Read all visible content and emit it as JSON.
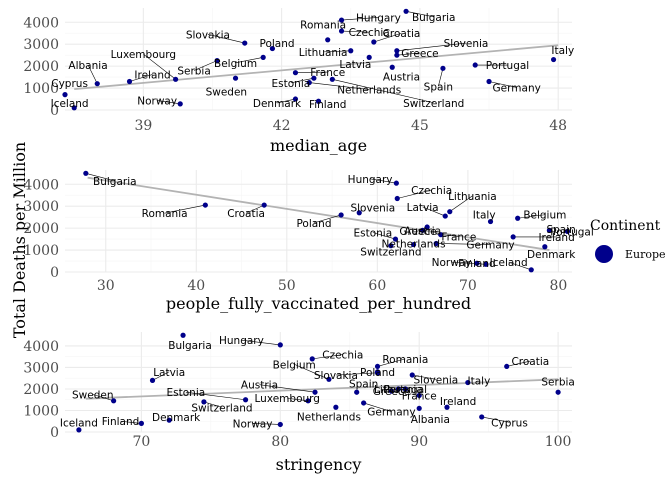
{
  "ylabel": "Total Deaths per Million",
  "legend": {
    "title": "Continent",
    "items": [
      {
        "name": "Europe",
        "color": "#00008B"
      }
    ]
  },
  "colors": {
    "point": "#00008B",
    "trend": "#b3b3b3",
    "grid_major": "#ebebeb",
    "grid_minor": "#f5f5f5"
  },
  "chart_data": [
    {
      "type": "scatter",
      "xlabel": "median_age",
      "xlim": [
        37.3,
        48.3
      ],
      "ylim": [
        0,
        4650
      ],
      "xticks": [
        39,
        42,
        45,
        48
      ],
      "yticks": [
        0,
        1000,
        2000,
        3000,
        4000
      ],
      "trend": [
        [
          37.5,
          950
        ],
        [
          48,
          2950
        ]
      ],
      "points": [
        {
          "label": "Bulgaria",
          "x": 44.7,
          "y": 4500,
          "lx": 45.3,
          "ly": 4250
        },
        {
          "label": "Hungary",
          "x": 43.3,
          "y": 4100,
          "lx": 44.1,
          "ly": 4220
        },
        {
          "label": "Romania",
          "x": 43.0,
          "y": 3200,
          "lx": 42.9,
          "ly": 3900
        },
        {
          "label": "Czechia",
          "x": 43.3,
          "y": 3600,
          "lx": 43.9,
          "ly": 3550
        },
        {
          "label": "Croatia",
          "x": 44.0,
          "y": 3100,
          "lx": 44.6,
          "ly": 3500
        },
        {
          "label": "Slovakia",
          "x": 41.2,
          "y": 3050,
          "lx": 40.4,
          "ly": 3450
        },
        {
          "label": "Poland",
          "x": 41.8,
          "y": 2800,
          "lx": 41.9,
          "ly": 3050
        },
        {
          "label": "Slovenia",
          "x": 44.5,
          "y": 2700,
          "lx": 46.0,
          "ly": 3050
        },
        {
          "label": "Lithuania",
          "x": 43.5,
          "y": 2700,
          "lx": 42.9,
          "ly": 2650
        },
        {
          "label": "Greece",
          "x": 44.5,
          "y": 2500,
          "lx": 45.0,
          "ly": 2600
        },
        {
          "label": "Italy",
          "x": 47.9,
          "y": 2300,
          "lx": 48.1,
          "ly": 2730
        },
        {
          "label": "Belgium",
          "x": 41.6,
          "y": 2400,
          "lx": 41.0,
          "ly": 2150
        },
        {
          "label": "Latvia",
          "x": 43.9,
          "y": 2400,
          "lx": 43.6,
          "ly": 2100
        },
        {
          "label": "Portugal",
          "x": 46.2,
          "y": 2050,
          "lx": 46.9,
          "ly": 2050
        },
        {
          "label": "Serbia",
          "x": 40.6,
          "y": 2250,
          "lx": 40.1,
          "ly": 1800
        },
        {
          "label": "Spain",
          "x": 45.5,
          "y": 1900,
          "lx": 45.4,
          "ly": 1080
        },
        {
          "label": "Austria",
          "x": 44.4,
          "y": 1950,
          "lx": 44.6,
          "ly": 1520
        },
        {
          "label": "France",
          "x": 42.3,
          "y": 1700,
          "lx": 43.0,
          "ly": 1730
        },
        {
          "label": "Germany",
          "x": 46.5,
          "y": 1300,
          "lx": 47.1,
          "ly": 1030
        },
        {
          "label": "Estonia",
          "x": 42.7,
          "y": 1450,
          "lx": 42.2,
          "ly": 1240
        },
        {
          "label": "Netherlands",
          "x": 42.6,
          "y": 1250,
          "lx": 43.9,
          "ly": 930
        },
        {
          "label": "Switzerland",
          "x": 43.1,
          "y": 1400,
          "lx": 45.3,
          "ly": 330
        },
        {
          "label": "Luxembourg",
          "x": 39.7,
          "y": 1400,
          "lx": 39.0,
          "ly": 2550
        },
        {
          "label": "Albania",
          "x": 38.0,
          "y": 1200,
          "lx": 37.8,
          "ly": 2050
        },
        {
          "label": "Ireland",
          "x": 38.7,
          "y": 1300,
          "lx": 39.2,
          "ly": 1620
        },
        {
          "label": "Sweden",
          "x": 41.0,
          "y": 1450,
          "lx": 40.8,
          "ly": 850
        },
        {
          "label": "Cyprus",
          "x": 37.3,
          "y": 700,
          "lx": 37.4,
          "ly": 1220
        },
        {
          "label": "Denmark",
          "x": 42.3,
          "y": 500,
          "lx": 41.9,
          "ly": 320
        },
        {
          "label": "Finland",
          "x": 42.8,
          "y": 400,
          "lx": 43.0,
          "ly": 270
        },
        {
          "label": "Iceland",
          "x": 37.5,
          "y": 100,
          "lx": 37.4,
          "ly": 330
        },
        {
          "label": "Norway",
          "x": 39.8,
          "y": 280,
          "lx": 39.3,
          "ly": 430
        }
      ]
    },
    {
      "type": "scatter",
      "xlabel": "people_fully_vaccinated_per_hundred",
      "xlim": [
        25.5,
        81.5
      ],
      "ylim": [
        0,
        4650
      ],
      "xticks": [
        30,
        40,
        50,
        60,
        70,
        80
      ],
      "yticks": [
        0,
        1000,
        2000,
        3000,
        4000
      ],
      "trend": [
        [
          28,
          4300
        ],
        [
          79,
          1000
        ]
      ],
      "points": [
        {
          "label": "Bulgaria",
          "x": 27.8,
          "y": 4500,
          "lx": 31.0,
          "ly": 4150
        },
        {
          "label": "Hungary",
          "x": 62.1,
          "y": 4050,
          "lx": 59.2,
          "ly": 4250
        },
        {
          "label": "Czechia",
          "x": 62.2,
          "y": 3350,
          "lx": 66.0,
          "ly": 3740
        },
        {
          "label": "Romania",
          "x": 41.0,
          "y": 3050,
          "lx": 36.5,
          "ly": 2680
        },
        {
          "label": "Croatia",
          "x": 47.5,
          "y": 3050,
          "lx": 45.5,
          "ly": 2680
        },
        {
          "label": "Lithuania",
          "x": 68.0,
          "y": 2750,
          "lx": 70.5,
          "ly": 3470
        },
        {
          "label": "Slovenia",
          "x": 58.0,
          "y": 2700,
          "lx": 59.5,
          "ly": 2930
        },
        {
          "label": "Latvia",
          "x": 67.5,
          "y": 2550,
          "lx": 65.0,
          "ly": 2970
        },
        {
          "label": "Belgium",
          "x": 75.5,
          "y": 2450,
          "lx": 78.5,
          "ly": 2610
        },
        {
          "label": "Italy",
          "x": 72.5,
          "y": 2300,
          "lx": 71.8,
          "ly": 2620
        },
        {
          "label": "Poland",
          "x": 56.0,
          "y": 2600,
          "lx": 53.0,
          "ly": 2240
        },
        {
          "label": "Greece",
          "x": 65.5,
          "y": 2050,
          "lx": 64.5,
          "ly": 1870
        },
        {
          "label": "Portugal",
          "x": 81.0,
          "y": 1850,
          "lx": 81.5,
          "ly": 1850
        },
        {
          "label": "Estonia",
          "x": 62.0,
          "y": 1500,
          "lx": 59.5,
          "ly": 1800
        },
        {
          "label": "France",
          "x": 67.0,
          "y": 1700,
          "lx": 69.0,
          "ly": 1620
        },
        {
          "label": "Ireland",
          "x": 75.0,
          "y": 1600,
          "lx": 79.8,
          "ly": 1600
        },
        {
          "label": "Germany",
          "x": 66.5,
          "y": 1300,
          "lx": 72.5,
          "ly": 1250
        },
        {
          "label": "Switzerland",
          "x": 61.5,
          "y": 1200,
          "lx": 61.5,
          "ly": 930
        },
        {
          "label": "Denmark",
          "x": 78.5,
          "y": 1150,
          "lx": 79.2,
          "ly": 830
        },
        {
          "label": "Spain",
          "x": 79.0,
          "y": 1900,
          "lx": 80.3,
          "ly": 1950
        },
        {
          "label": "Netherlands",
          "x": 64.0,
          "y": 1250,
          "lx": 64.0,
          "ly": 1300
        },
        {
          "label": "Austria",
          "x": 65.0,
          "y": 1900,
          "lx": 65.0,
          "ly": 1900
        },
        {
          "label": "Norway",
          "x": 72.0,
          "y": 350,
          "lx": 68.2,
          "ly": 450
        },
        {
          "label": "Iceland",
          "x": 77.0,
          "y": 100,
          "lx": 74.5,
          "ly": 450
        },
        {
          "label": "Finland",
          "x": 71.0,
          "y": 400,
          "lx": 71.0,
          "ly": 400
        }
      ]
    },
    {
      "type": "scatter",
      "xlabel": "stringency",
      "xlim": [
        64.5,
        101
      ],
      "ylim": [
        0,
        4650
      ],
      "xticks": [
        70,
        80,
        90,
        100
      ],
      "yticks": [
        0,
        1000,
        2000,
        3000,
        4000
      ],
      "trend": [
        [
          66,
          1550
        ],
        [
          100,
          2450
        ]
      ],
      "points": [
        {
          "label": "Bulgaria",
          "x": 73.0,
          "y": 4500,
          "lx": 73.5,
          "ly": 4050
        },
        {
          "label": "Hungary",
          "x": 80.0,
          "y": 4050,
          "lx": 77.2,
          "ly": 4270
        },
        {
          "label": "Czechia",
          "x": 82.3,
          "y": 3400,
          "lx": 84.5,
          "ly": 3600
        },
        {
          "label": "Croatia",
          "x": 96.3,
          "y": 3050,
          "lx": 98.0,
          "ly": 3300
        },
        {
          "label": "Romania",
          "x": 87.0,
          "y": 3050,
          "lx": 89.0,
          "ly": 3400
        },
        {
          "label": "Belgium",
          "x": 83.5,
          "y": 2450,
          "lx": 81.0,
          "ly": 3150
        },
        {
          "label": "Slovakia",
          "x": 87.0,
          "y": 2750,
          "lx": 84.0,
          "ly": 2650
        },
        {
          "label": "Latvia",
          "x": 70.8,
          "y": 2400,
          "lx": 72.0,
          "ly": 2800
        },
        {
          "label": "Slovenia",
          "x": 89.5,
          "y": 2650,
          "lx": 91.2,
          "ly": 2450
        },
        {
          "label": "Italy",
          "x": 93.5,
          "y": 2300,
          "lx": 94.3,
          "ly": 2400
        },
        {
          "label": "Serbia",
          "x": 100.0,
          "y": 1850,
          "lx": 100.0,
          "ly": 2350
        },
        {
          "label": "Spain",
          "x": 85.5,
          "y": 1850,
          "lx": 86.0,
          "ly": 2250
        },
        {
          "label": "Austria",
          "x": 82.5,
          "y": 1850,
          "lx": 78.5,
          "ly": 2200
        },
        {
          "label": "Sweden",
          "x": 68.0,
          "y": 1450,
          "lx": 66.5,
          "ly": 1750
        },
        {
          "label": "Estonia",
          "x": 77.5,
          "y": 1500,
          "lx": 73.2,
          "ly": 1850
        },
        {
          "label": "Luxembourg",
          "x": 82.0,
          "y": 1450,
          "lx": 80.5,
          "ly": 1570
        },
        {
          "label": "Switzerland",
          "x": 74.5,
          "y": 1400,
          "lx": 75.8,
          "ly": 1150
        },
        {
          "label": "Netherlands",
          "x": 84.0,
          "y": 1150,
          "lx": 83.5,
          "ly": 730
        },
        {
          "label": "Ireland",
          "x": 92.0,
          "y": 1150,
          "lx": 92.8,
          "ly": 1450
        },
        {
          "label": "Germany",
          "x": 86.0,
          "y": 1350,
          "lx": 88.0,
          "ly": 950
        },
        {
          "label": "Portugal",
          "x": 89.0,
          "y": 2000,
          "lx": 89.0,
          "ly": 2000
        },
        {
          "label": "Greece",
          "x": 88.0,
          "y": 1900,
          "lx": 88.0,
          "ly": 1900
        },
        {
          "label": "France",
          "x": 90.0,
          "y": 1700,
          "lx": 90.0,
          "ly": 1700
        },
        {
          "label": "Lithuania",
          "x": 88.5,
          "y": 2000,
          "lx": 88.5,
          "ly": 2000
        },
        {
          "label": "Poland",
          "x": 87.0,
          "y": 2800,
          "lx": 87.0,
          "ly": 2800
        },
        {
          "label": "Denmark",
          "x": 72.0,
          "y": 550,
          "lx": 72.5,
          "ly": 700
        },
        {
          "label": "Finland",
          "x": 70.0,
          "y": 400,
          "lx": 68.5,
          "ly": 500
        },
        {
          "label": "Norway",
          "x": 80.0,
          "y": 350,
          "lx": 78.0,
          "ly": 400
        },
        {
          "label": "Iceland",
          "x": 65.5,
          "y": 100,
          "lx": 65.5,
          "ly": 450
        },
        {
          "label": "Albania",
          "x": 90.0,
          "y": 1100,
          "lx": 90.8,
          "ly": 600
        },
        {
          "label": "Cyprus",
          "x": 94.5,
          "y": 700,
          "lx": 96.5,
          "ly": 450
        }
      ]
    }
  ]
}
